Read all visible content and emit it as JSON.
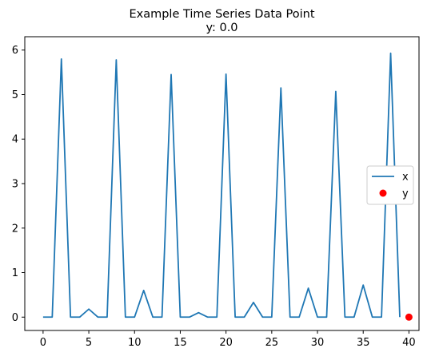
{
  "chart_data": {
    "type": "line",
    "title_line1": "Example Time Series Data Point",
    "title_line2": "y: 0.0",
    "xlabel": "",
    "ylabel": "",
    "xlim": [
      -2,
      41.1
    ],
    "ylim": [
      -0.3,
      6.3
    ],
    "xticks": [
      0,
      5,
      10,
      15,
      20,
      25,
      30,
      35,
      40
    ],
    "xtick_labels": [
      "0",
      "5",
      "10",
      "15",
      "20",
      "25",
      "30",
      "35",
      "40"
    ],
    "yticks": [
      0,
      1,
      2,
      3,
      4,
      5,
      6
    ],
    "ytick_labels": [
      "0",
      "1",
      "2",
      "3",
      "4",
      "5",
      "6"
    ],
    "grid": false,
    "legend_location": "center-right",
    "series": [
      {
        "name": "x",
        "kind": "line",
        "color": "#1f77b4",
        "x": [
          0,
          1,
          2,
          3,
          4,
          5,
          6,
          7,
          8,
          9,
          10,
          11,
          12,
          13,
          14,
          15,
          16,
          17,
          18,
          19,
          20,
          21,
          22,
          23,
          24,
          25,
          26,
          27,
          28,
          29,
          30,
          31,
          32,
          33,
          34,
          35,
          36,
          37,
          38,
          39
        ],
        "values": [
          0,
          0,
          5.8,
          0,
          0,
          0.18,
          0,
          0,
          5.78,
          0,
          0,
          0.6,
          0,
          0,
          5.45,
          0,
          0,
          0.1,
          0,
          0,
          5.46,
          0,
          0,
          0.33,
          0,
          0,
          5.15,
          0,
          0,
          0.65,
          0,
          0,
          5.07,
          0,
          0,
          0.72,
          0,
          0,
          5.93,
          0
        ]
      },
      {
        "name": "y",
        "kind": "scatter",
        "color": "#ff0000",
        "x": [
          40
        ],
        "values": [
          0.0
        ]
      }
    ]
  }
}
